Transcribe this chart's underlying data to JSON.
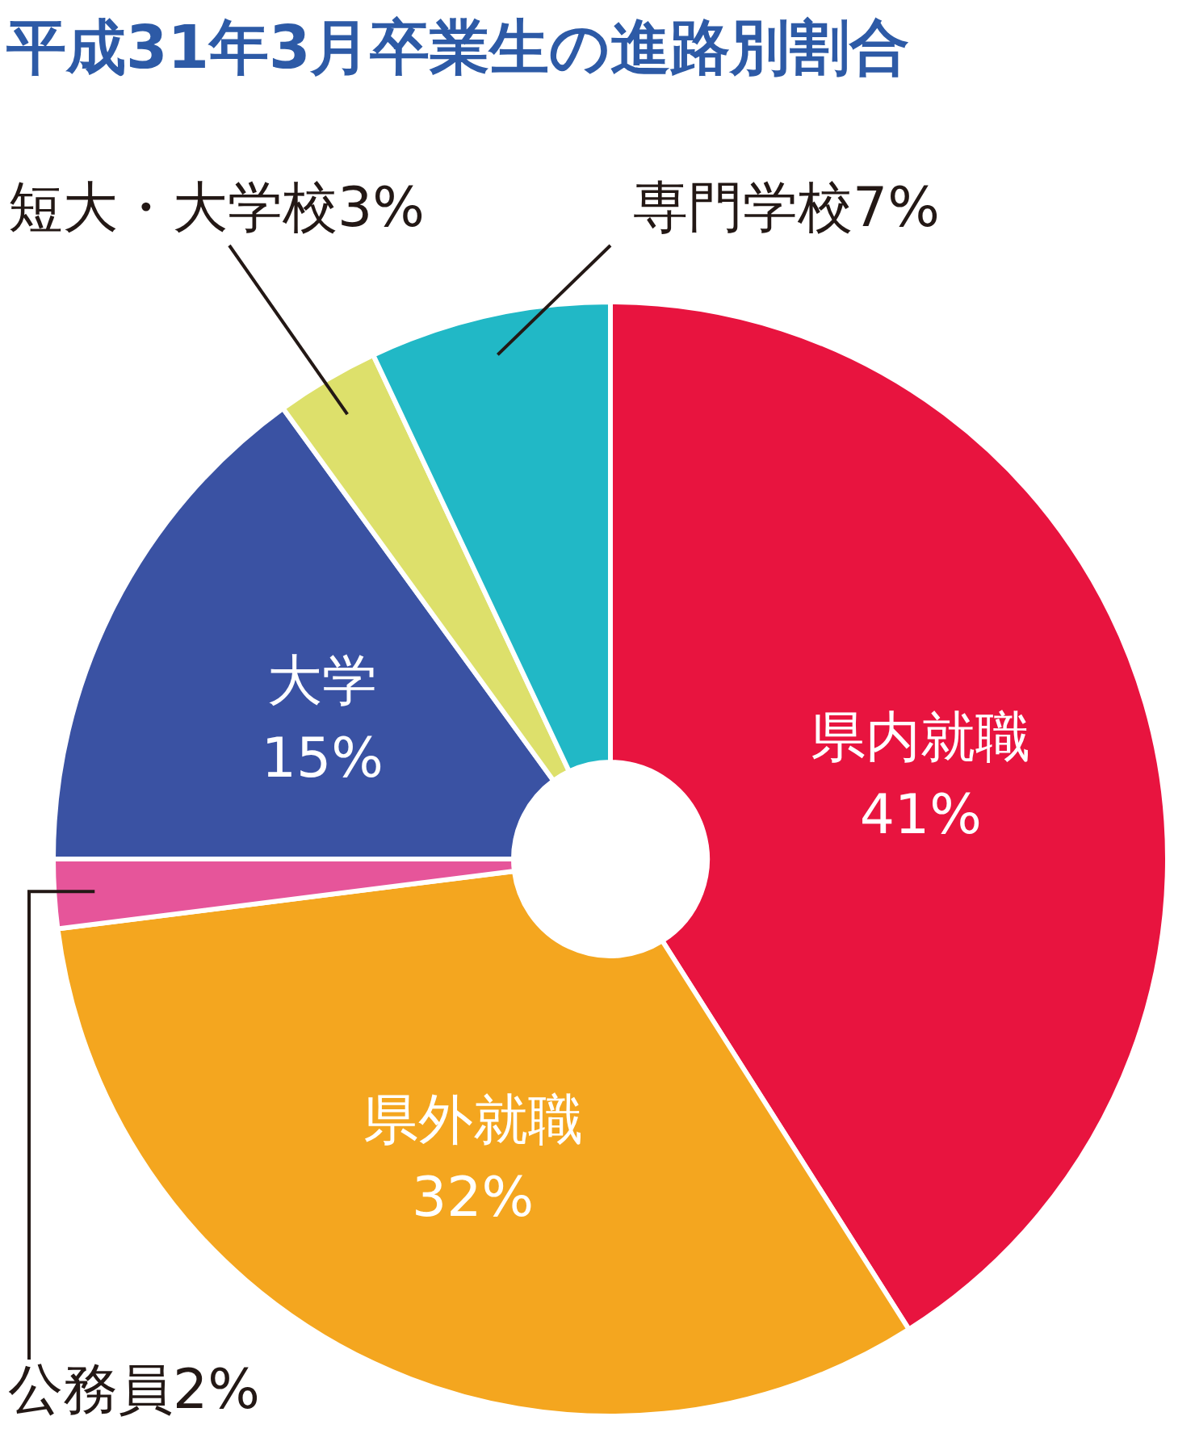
{
  "chart_data": {
    "type": "donut",
    "title": "平成31年3月卒業生の進路別割合",
    "categories": [
      "県内就職",
      "県外就職",
      "公務員",
      "大学",
      "短大・大学校",
      "専門学校"
    ],
    "values": [
      41,
      32,
      2,
      15,
      3,
      7
    ],
    "value_labels": [
      "41%",
      "32%",
      "2%",
      "15%",
      "3%",
      "7%"
    ],
    "colors": [
      "#e8143f",
      "#f4a61f",
      "#e6559a",
      "#3a52a3",
      "#dde06b",
      "#21b8c6"
    ]
  }
}
